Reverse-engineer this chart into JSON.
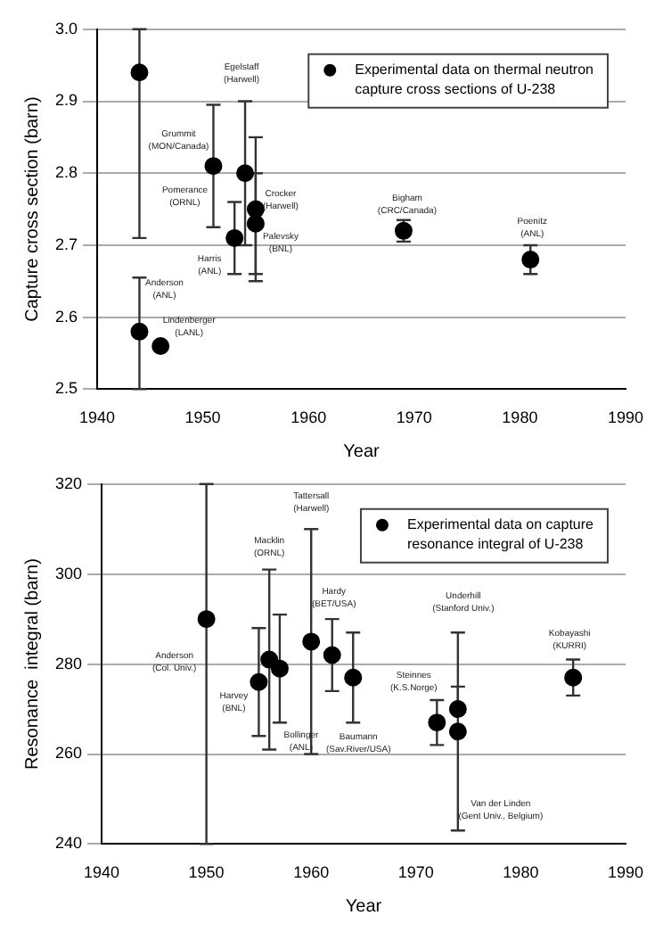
{
  "chart_data": [
    {
      "type": "scatter",
      "xlabel": "Year",
      "ylabel": "Capture cross section (barn)",
      "xlim": [
        1940,
        1990
      ],
      "xticks": [
        1940,
        1950,
        1960,
        1970,
        1980,
        1990
      ],
      "ylim": [
        2.5,
        3.0
      ],
      "yticks": [
        2.5,
        2.6,
        2.7,
        2.8,
        2.9,
        {
          "value": 3.0,
          "label": "3.0"
        }
      ],
      "grid": "y",
      "legend": "top right",
      "marker": "circle",
      "series": [
        {
          "name": "Experimental data on thermal neutron capture cross sections of U-238",
          "color": "#000000",
          "x": [
            1944,
            1944,
            1946,
            1951,
            1953,
            1954,
            1955,
            1955,
            1969,
            1981
          ],
          "values": [
            2.94,
            2.58,
            2.56,
            2.81,
            2.71,
            2.8,
            2.75,
            2.73,
            2.72,
            2.68
          ],
          "errors": [
            [
              2.71,
              3.0
            ],
            [
              2.5,
              2.655
            ],
            null,
            [
              2.725,
              2.895
            ],
            [
              2.66,
              2.76
            ],
            [
              2.7,
              2.9
            ],
            [
              2.65,
              2.85
            ],
            [
              2.66,
              2.8
            ],
            [
              2.705,
              2.735
            ],
            [
              2.66,
              2.7
            ]
          ]
        }
      ],
      "annotations": [
        "Grummit (MON/Canada)",
        "Anderson (ANL)",
        "Lindenberger (LANL)",
        "Pomerance (ORNL)",
        "Harris (ANL)",
        "Egelstaff (Harwell)",
        "Crocker (Harwell)",
        "Palevsky (BNL)",
        "Bigham (CRC/Canada)",
        "Poenitz (ANL)"
      ]
    },
    {
      "type": "scatter",
      "xlabel": "Year",
      "ylabel": "Resonance  integral (barn)",
      "xlim": [
        1940,
        1990
      ],
      "xticks": [
        1940,
        1950,
        1960,
        1970,
        1980,
        1990
      ],
      "ylim": [
        240,
        320
      ],
      "yticks": [
        240,
        260,
        280,
        300,
        320
      ],
      "grid": "y",
      "legend": "top right",
      "marker": "circle",
      "series": [
        {
          "name": "Experimental data on capture resonance integral of U-238",
          "color": "#000000",
          "x": [
            1950,
            1955,
            1956,
            1957,
            1960,
            1962,
            1964,
            1972,
            1974,
            1974,
            1985
          ],
          "values": [
            290,
            276,
            281,
            279,
            285,
            282,
            277,
            267,
            270,
            265,
            277
          ],
          "errors": [
            [
              240,
              320
            ],
            [
              264,
              288
            ],
            [
              261,
              301
            ],
            [
              267,
              291
            ],
            [
              260,
              310
            ],
            [
              274,
              290
            ],
            [
              267,
              287
            ],
            [
              262,
              272
            ],
            [
              270,
              275
            ],
            [
              243,
              287
            ],
            [
              273,
              281
            ]
          ]
        }
      ],
      "annotations": [
        "Anderson (Col. Univ.)",
        "Harvey (BNL)",
        "Macklin (ORNL)",
        "Bollinger (ANL)",
        "Tattersall (Harwell)",
        "Hardy (BET/USA)",
        "Baumann (Sav.River/USA)",
        "Steinnes (K.S.Norge)",
        "Underhill (Stanford Univ.)",
        "Van der Linden (Gent Univ., Belgium)",
        "Kobayashi (KURRI)"
      ]
    }
  ]
}
